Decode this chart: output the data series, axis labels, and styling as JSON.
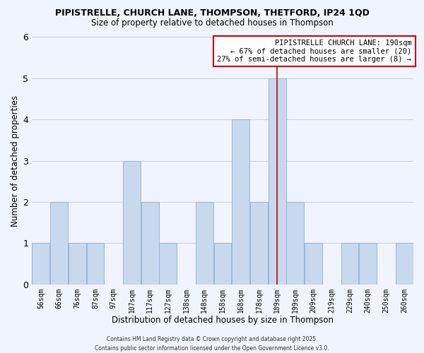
{
  "title": "PIPISTRELLE, CHURCH LANE, THOMPSON, THETFORD, IP24 1QD",
  "subtitle": "Size of property relative to detached houses in Thompson",
  "xlabel": "Distribution of detached houses by size in Thompson",
  "ylabel": "Number of detached properties",
  "bins": [
    "56sqm",
    "66sqm",
    "76sqm",
    "87sqm",
    "97sqm",
    "107sqm",
    "117sqm",
    "127sqm",
    "138sqm",
    "148sqm",
    "158sqm",
    "168sqm",
    "178sqm",
    "189sqm",
    "199sqm",
    "209sqm",
    "219sqm",
    "229sqm",
    "240sqm",
    "250sqm",
    "260sqm"
  ],
  "counts": [
    1,
    2,
    1,
    1,
    0,
    3,
    2,
    1,
    0,
    2,
    1,
    4,
    2,
    5,
    2,
    1,
    0,
    1,
    1,
    0,
    1
  ],
  "bar_color": "#c8d8ed",
  "bar_edge_color": "#99b8d4",
  "vline_x_index": 13,
  "vline_color": "#cc0000",
  "annotation_title": "PIPISTRELLE CHURCH LANE: 190sqm",
  "annotation_line1": "← 67% of detached houses are smaller (20)",
  "annotation_line2": "27% of semi-detached houses are larger (8) →",
  "annotation_box_color": "white",
  "annotation_box_edge_color": "#cc0000",
  "ylim": [
    0,
    6
  ],
  "yticks": [
    0,
    1,
    2,
    3,
    4,
    5,
    6
  ],
  "footer1": "Contains HM Land Registry data © Crown copyright and database right 2025.",
  "footer2": "Contains public sector information licensed under the Open Government Licence v3.0.",
  "background_color": "#f0f4ff",
  "grid_color": "#c8d4e8"
}
